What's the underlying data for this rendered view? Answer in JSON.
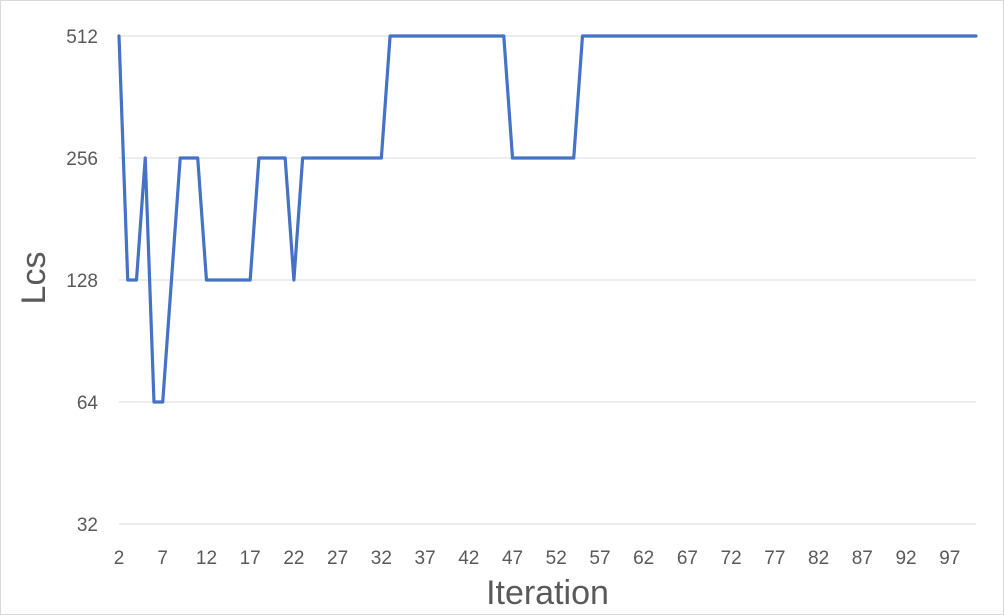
{
  "chart_data": {
    "type": "line",
    "title": "",
    "xlabel": "Iteration",
    "ylabel": "Lcs",
    "y_scale": "log2",
    "ylim": [
      32,
      512
    ],
    "xlim": [
      2,
      100
    ],
    "y_ticks": [
      32,
      64,
      128,
      256,
      512
    ],
    "x_ticks": [
      2,
      7,
      12,
      17,
      22,
      27,
      32,
      37,
      42,
      47,
      52,
      57,
      62,
      67,
      72,
      77,
      82,
      87,
      92,
      97
    ],
    "grid": true,
    "legend": "none",
    "series_color": "#4472c4",
    "grid_color": "#d9d9d9",
    "series": [
      {
        "x": [
          2,
          3,
          4,
          5,
          6,
          7,
          8,
          9,
          10,
          11,
          12,
          13,
          14,
          15,
          16,
          17,
          18,
          19,
          20,
          21,
          22,
          23,
          24,
          25,
          26,
          27,
          28,
          29,
          30,
          31,
          32,
          33,
          34,
          35,
          36,
          37,
          38,
          39,
          40,
          41,
          42,
          43,
          44,
          45,
          46,
          47,
          48,
          49,
          50,
          51,
          52,
          53,
          54,
          55,
          56,
          57,
          58,
          59,
          60,
          61,
          62,
          63,
          64,
          65,
          66,
          67,
          68,
          69,
          70,
          71,
          72,
          73,
          74,
          75,
          76,
          77,
          78,
          79,
          80,
          81,
          82,
          83,
          84,
          85,
          86,
          87,
          88,
          89,
          90,
          91,
          92,
          93,
          94,
          95,
          96,
          97,
          98,
          99,
          100
        ],
        "values": [
          512,
          128,
          128,
          256,
          64,
          64,
          128,
          256,
          256,
          256,
          128,
          128,
          128,
          128,
          128,
          128,
          256,
          256,
          256,
          256,
          128,
          256,
          256,
          256,
          256,
          256,
          256,
          256,
          256,
          256,
          256,
          512,
          512,
          512,
          512,
          512,
          512,
          512,
          512,
          512,
          512,
          512,
          512,
          512,
          512,
          256,
          256,
          256,
          256,
          256,
          256,
          256,
          256,
          512,
          512,
          512,
          512,
          512,
          512,
          512,
          512,
          512,
          512,
          512,
          512,
          512,
          512,
          512,
          512,
          512,
          512,
          512,
          512,
          512,
          512,
          512,
          512,
          512,
          512,
          512,
          512,
          512,
          512,
          512,
          512,
          512,
          512,
          512,
          512,
          512,
          512,
          512,
          512,
          512,
          512,
          512,
          512,
          512,
          512
        ]
      }
    ]
  }
}
